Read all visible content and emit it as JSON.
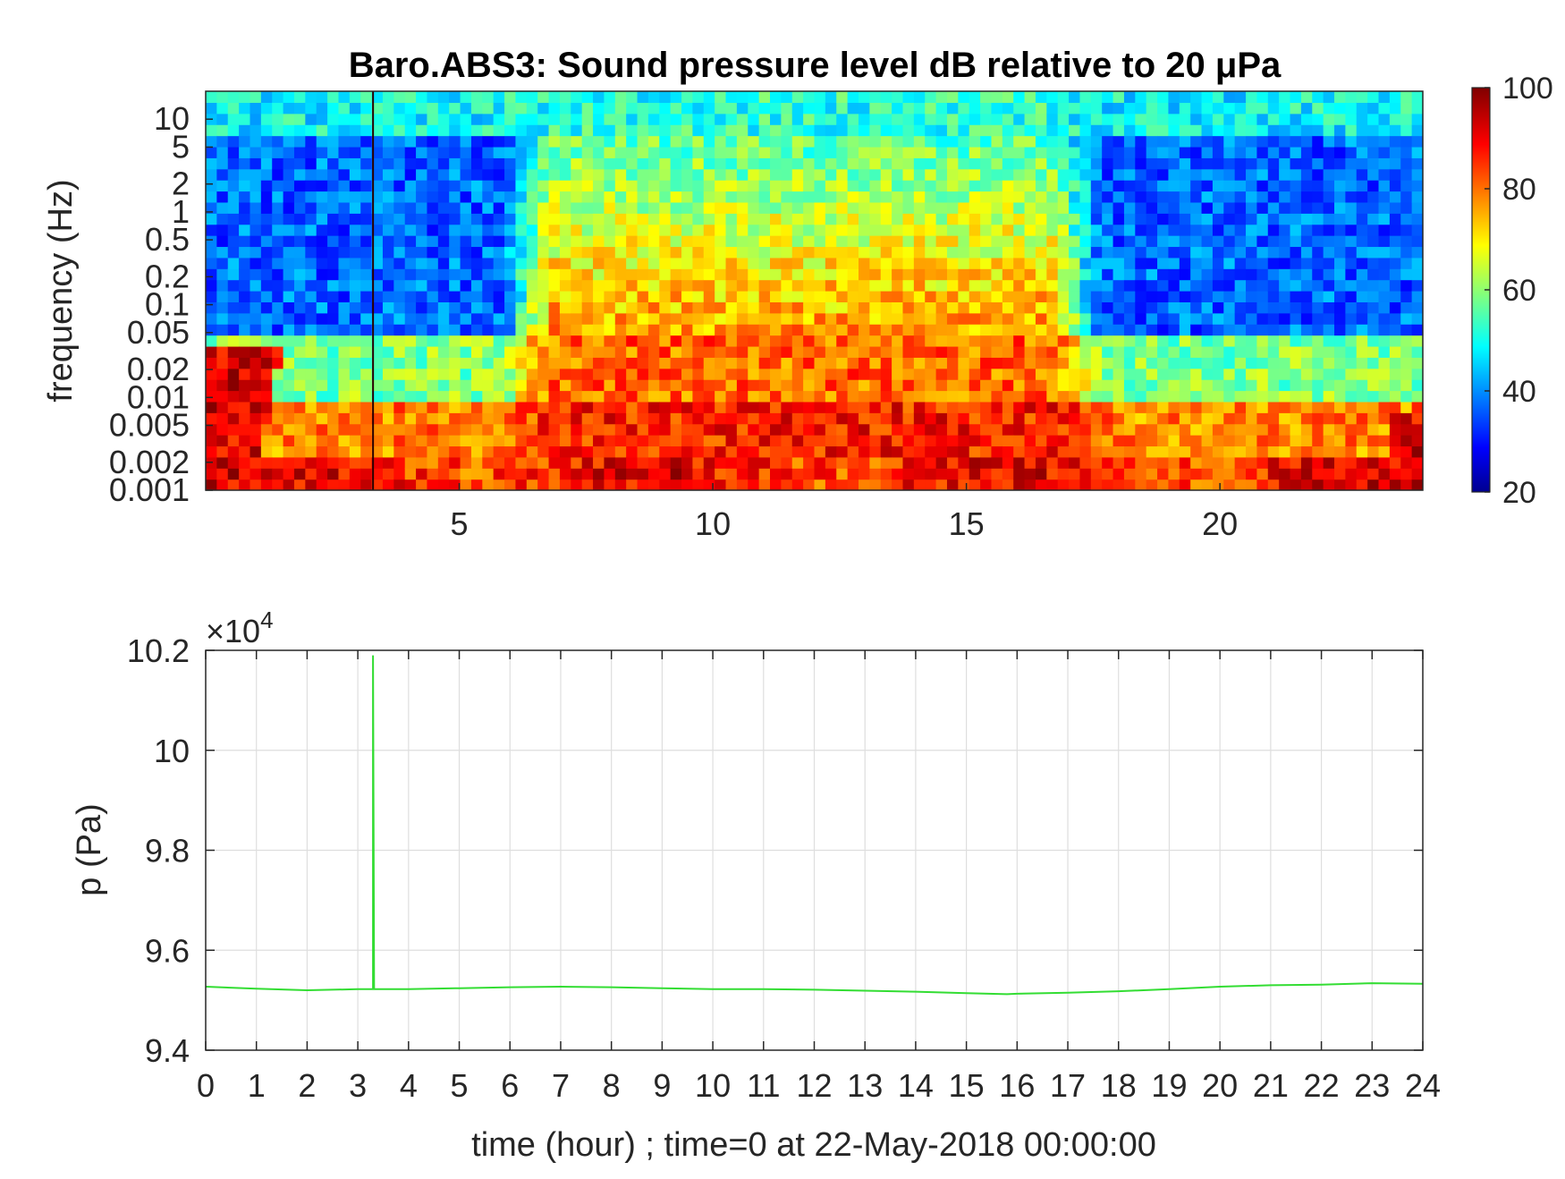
{
  "chart_data": [
    {
      "type": "heatmap",
      "title": "Baro.ABS3: Sound pressure level dB relative to 20 μPa",
      "ylabel": "frequency (Hz)",
      "xlabel": "",
      "x_range": [
        0,
        24
      ],
      "x_ticks": [
        5,
        10,
        15,
        20
      ],
      "y_scale": "log",
      "y_range": [
        0.001,
        20
      ],
      "y_ticks": [
        {
          "value": 10,
          "label": "10"
        },
        {
          "value": 5,
          "label": "5"
        },
        {
          "value": 2,
          "label": "2"
        },
        {
          "value": 1,
          "label": "1"
        },
        {
          "value": 0.5,
          "label": "0.5"
        },
        {
          "value": 0.2,
          "label": "0.2"
        },
        {
          "value": 0.1,
          "label": "0.1"
        },
        {
          "value": 0.05,
          "label": "0.05"
        },
        {
          "value": 0.02,
          "label": "0.02"
        },
        {
          "value": 0.01,
          "label": "0.01"
        },
        {
          "value": 0.005,
          "label": "0.005"
        },
        {
          "value": 0.002,
          "label": "0.002"
        },
        {
          "value": 0.001,
          "label": "0.001"
        }
      ],
      "colormap": "jet",
      "colorbar": {
        "range": [
          20,
          100
        ],
        "ticks": [
          20,
          40,
          60,
          80,
          100
        ]
      },
      "quiet_periods_hours": [
        [
          0,
          6.3
        ],
        [
          17.2,
          24
        ]
      ],
      "active_period_hours": [
        6.3,
        17.2
      ],
      "impulse_time_hours": 3.3
    },
    {
      "type": "line",
      "xlabel": "time (hour) ; time=0 at 22-May-2018 00:00:00",
      "ylabel": "p (Pa)",
      "y_exponent": "×10",
      "y_exponent_power": "4",
      "xlim": [
        0,
        24
      ],
      "ylim": [
        9.4,
        10.2
      ],
      "x_ticks": [
        0,
        1,
        2,
        3,
        4,
        5,
        6,
        7,
        8,
        9,
        10,
        11,
        12,
        13,
        14,
        15,
        16,
        17,
        18,
        19,
        20,
        21,
        22,
        23,
        24
      ],
      "y_ticks": [
        9.4,
        9.6,
        9.8,
        10,
        10.2
      ],
      "y_tick_labels": [
        "9.4",
        "9.6",
        "9.8",
        "10",
        "10.2"
      ],
      "grid": true,
      "line_color": "#33dd33",
      "series": [
        {
          "x": [
            0,
            1,
            2,
            3,
            3.28,
            3.3,
            3.3,
            3.32,
            4,
            5,
            6,
            7,
            8,
            9,
            10,
            11,
            12,
            13,
            14,
            15,
            15.8,
            16,
            17,
            18,
            19,
            20,
            21,
            22,
            23,
            24
          ],
          "values": [
            9.527,
            9.523,
            9.52,
            9.522,
            9.522,
            9.522,
            10.19,
            9.522,
            9.522,
            9.524,
            9.526,
            9.527,
            9.526,
            9.524,
            9.522,
            9.522,
            9.521,
            9.519,
            9.517,
            9.514,
            9.512,
            9.513,
            9.515,
            9.518,
            9.522,
            9.527,
            9.53,
            9.531,
            9.534,
            9.533
          ]
        }
      ]
    }
  ]
}
